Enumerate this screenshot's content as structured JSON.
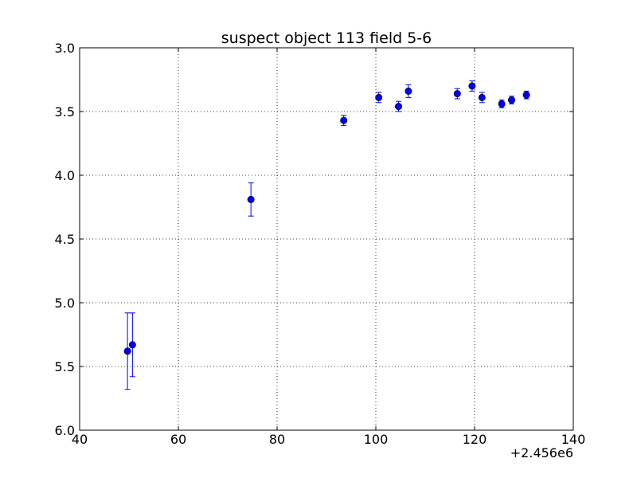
{
  "chart_data": {
    "type": "scatter",
    "title": "suspect object 113 field 5-6",
    "xlabel": "",
    "ylabel": "",
    "x_offset_label": "+2.456e6",
    "x_offset": 2456000,
    "xlim": [
      2456040,
      2456140
    ],
    "ylim": [
      3.0,
      6.0
    ],
    "y_inverted": true,
    "x_ticks": [
      2456040,
      2456060,
      2456080,
      2456100,
      2456120,
      2456140
    ],
    "x_tick_labels": [
      "40",
      "60",
      "80",
      "100",
      "120",
      "140"
    ],
    "y_ticks": [
      3.0,
      3.5,
      4.0,
      4.5,
      5.0,
      5.5,
      6.0
    ],
    "y_tick_labels": [
      "3.0",
      "3.5",
      "4.0",
      "4.5",
      "5.0",
      "5.5",
      "6.0"
    ],
    "grid": true,
    "marker_color": "#0000ff",
    "errorbar_color": "#0000ff",
    "series": [
      {
        "points": [
          {
            "x": 2456049.7,
            "y": 5.38,
            "err": 0.3
          },
          {
            "x": 2456050.7,
            "y": 5.33,
            "err": 0.25
          },
          {
            "x": 2456074.7,
            "y": 4.19,
            "err": 0.13
          },
          {
            "x": 2456093.5,
            "y": 3.57,
            "err": 0.04
          },
          {
            "x": 2456100.6,
            "y": 3.39,
            "err": 0.04
          },
          {
            "x": 2456104.6,
            "y": 3.46,
            "err": 0.04
          },
          {
            "x": 2456106.6,
            "y": 3.34,
            "err": 0.05
          },
          {
            "x": 2456116.5,
            "y": 3.36,
            "err": 0.04
          },
          {
            "x": 2456119.5,
            "y": 3.3,
            "err": 0.04
          },
          {
            "x": 2456121.5,
            "y": 3.39,
            "err": 0.04
          },
          {
            "x": 2456125.5,
            "y": 3.44,
            "err": 0.03
          },
          {
            "x": 2456127.5,
            "y": 3.41,
            "err": 0.03
          },
          {
            "x": 2456130.5,
            "y": 3.37,
            "err": 0.03
          }
        ]
      }
    ]
  }
}
